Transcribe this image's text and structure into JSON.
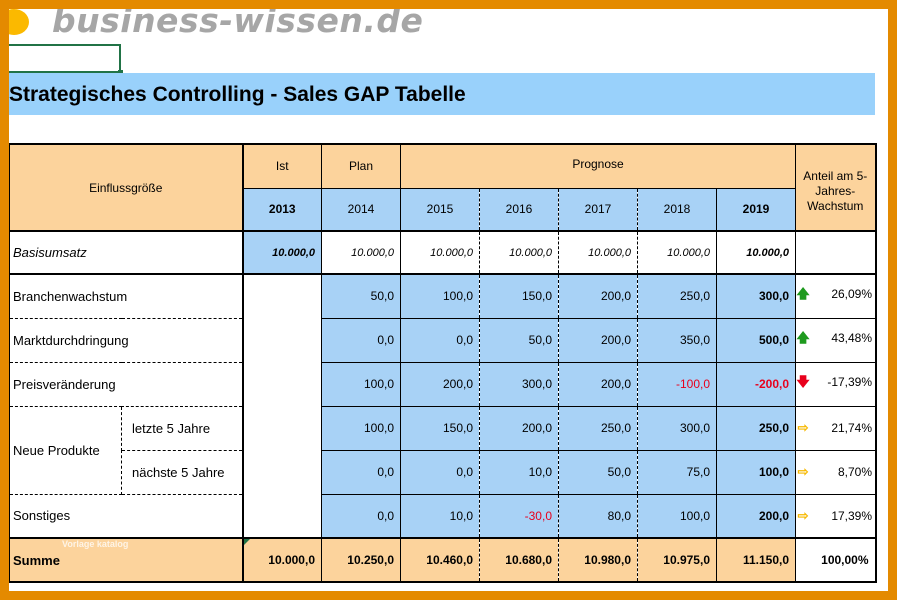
{
  "brand": "business-wissen.de",
  "title": "Strategisches Controlling - Sales GAP Tabelle",
  "header": {
    "einfluss": "Einflussgröße",
    "ist": "Ist",
    "plan": "Plan",
    "prognose": "Prognose",
    "anteil": [
      "Anteil am 5-",
      "Jahres-",
      "Wachstum"
    ],
    "years": [
      "2013",
      "2014",
      "2015",
      "2016",
      "2017",
      "2018",
      "2019"
    ]
  },
  "rows": {
    "basis": {
      "label": "Basisumsatz",
      "values": [
        "10.000,0",
        "10.000,0",
        "10.000,0",
        "10.000,0",
        "10.000,0",
        "10.000,0",
        "10.000,0"
      ]
    },
    "branchen": {
      "label": "Branchenwachstum",
      "values": [
        "50,0",
        "100,0",
        "150,0",
        "200,0",
        "250,0",
        "300,0"
      ],
      "arrow": "up",
      "share": "26,09%"
    },
    "markt": {
      "label": "Marktdurchdringung",
      "values": [
        "0,0",
        "0,0",
        "50,0",
        "200,0",
        "350,0",
        "500,0"
      ],
      "arrow": "up",
      "share": "43,48%"
    },
    "preis": {
      "label": "Preisveränderung",
      "values": [
        "100,0",
        "200,0",
        "300,0",
        "200,0",
        "-100,0",
        "-200,0"
      ],
      "arrow": "down",
      "share": "-17,39%"
    },
    "neue_label": "Neue Produkte",
    "letzte": {
      "label": "letzte 5 Jahre",
      "values": [
        "100,0",
        "150,0",
        "200,0",
        "250,0",
        "300,0",
        "250,0"
      ],
      "arrow": "right",
      "share": "21,74%"
    },
    "naechste": {
      "label": "nächste 5 Jahre",
      "values": [
        "0,0",
        "0,0",
        "10,0",
        "50,0",
        "75,0",
        "100,0"
      ],
      "arrow": "right",
      "share": "8,70%"
    },
    "sonstiges": {
      "label": "Sonstiges",
      "values": [
        "0,0",
        "10,0",
        "-30,0",
        "80,0",
        "100,0",
        "200,0"
      ],
      "arrow": "right",
      "share": "17,39%"
    },
    "summe": {
      "label": "Summe",
      "values": [
        "10.000,0",
        "10.250,0",
        "10.460,0",
        "10.680,0",
        "10.980,0",
        "10.975,0",
        "11.150,0"
      ],
      "share": "100,00%"
    }
  },
  "watermark": "Vorlage katalog",
  "colors": {
    "header": "#fcd39c",
    "blue": "#a8d2f6",
    "title_bg": "#99d1fb",
    "frame": "#e48a00",
    "green_arrow": "#1e9a1e",
    "red_arrow": "#e8001c",
    "yellow_arrow": "#f6b800"
  },
  "icons": {
    "up": "green-up-arrow-icon",
    "down": "red-down-arrow-icon",
    "right": "yellow-right-arrow-icon"
  }
}
